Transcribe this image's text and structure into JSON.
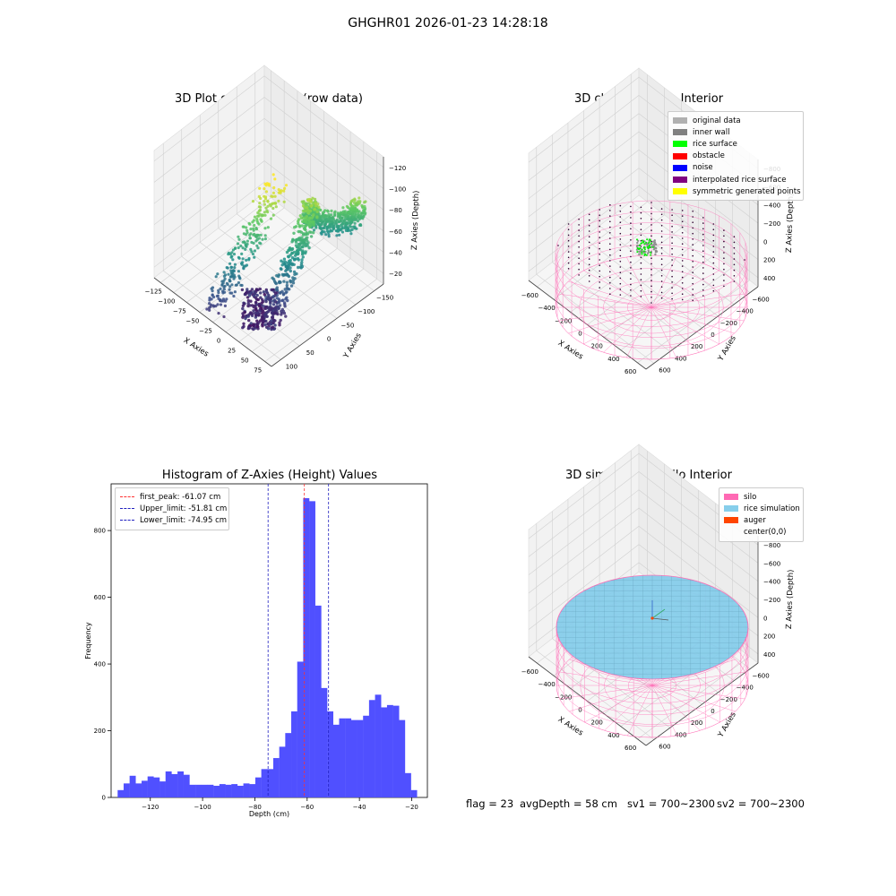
{
  "figure_title": "GHGHR01 2026-01-23 14:28:18",
  "status": {
    "flag": "flag = 23",
    "avg_depth": "avgDepth = 58 cm",
    "sv1": "sv1 = 700~2300",
    "sv2": "sv2 = 700~2300"
  },
  "colors": {
    "histogram_bar": "#5050ff",
    "first_peak": "#ff3030",
    "limits": "#2020c0",
    "silo": "#ff69b4",
    "rice_simulation": "#87ceeb",
    "auger": "#ff4500"
  },
  "chart_data": [
    {
      "type": "scatter",
      "title": "3D Plot of Silo Interior(row data)",
      "xlabel": "X Axies",
      "ylabel": "Y Axies",
      "zlabel": "Z Axies (Depth)",
      "xticks": [
        "−125",
        "−100",
        "−75",
        "−50",
        "−25",
        "0",
        "25",
        "50",
        "75"
      ],
      "yticks": [
        "100",
        "50",
        "0",
        "−50",
        "−100",
        "−150"
      ],
      "zticks": [
        "−20",
        "−40",
        "−60",
        "−80",
        "−100",
        "−120"
      ],
      "xlim": [
        -140,
        80
      ],
      "ylim": [
        -160,
        120
      ],
      "zlim": [
        -130,
        -15
      ],
      "colormap": "viridis"
    },
    {
      "type": "scatter",
      "title": "3D classify of Silo Interior",
      "xlabel": "X Axies",
      "ylabel": "Y Axies",
      "zlabel": "Z Axies (Depth)",
      "xticks": [
        "−600",
        "−400",
        "−200",
        "0",
        "200",
        "400",
        "600"
      ],
      "yticks": [
        "600",
        "400",
        "200",
        "0",
        "−200",
        "−400",
        "−600"
      ],
      "zticks": [
        "400",
        "200",
        "0",
        "−200",
        "−400",
        "−600",
        "−800"
      ],
      "legend": [
        {
          "label": "original data",
          "color": "#b0b0b0"
        },
        {
          "label": "inner wall",
          "color": "#808080"
        },
        {
          "label": "rice surface",
          "color": "#00ff00"
        },
        {
          "label": "obstacle",
          "color": "#ff0000"
        },
        {
          "label": "noise",
          "color": "#0000ff"
        },
        {
          "label": "interpolated rice surface",
          "color": "#800080"
        },
        {
          "label": "symmetric generated points",
          "color": "#ffff00"
        }
      ]
    },
    {
      "type": "bar",
      "title": "Histogram of Z-Axies (Height) Values",
      "xlabel": "Depth (cm)",
      "ylabel": "Frequency",
      "xlim": [
        -135,
        -14
      ],
      "ylim": [
        0,
        940
      ],
      "xticks": [
        -120,
        -100,
        -80,
        -60,
        -40,
        -20
      ],
      "yticks": [
        0,
        200,
        400,
        600,
        800
      ],
      "bin_start": -132.5,
      "bin_width": 2.29,
      "values": [
        22,
        42,
        65,
        42,
        50,
        63,
        60,
        48,
        78,
        70,
        78,
        68,
        38,
        38,
        38,
        38,
        35,
        40,
        38,
        40,
        35,
        42,
        40,
        60,
        85,
        85,
        118,
        152,
        193,
        258,
        407,
        897,
        888,
        575,
        328,
        258,
        218,
        237,
        237,
        232,
        232,
        245,
        292,
        308,
        270,
        277,
        275,
        232,
        73,
        22
      ],
      "vlines": [
        {
          "label": "first_peak: -61.07 cm",
          "x": -61.07,
          "color": "#ff3030"
        },
        {
          "label": "Upper_limit: -51.81 cm",
          "x": -51.81,
          "color": "#2020c0"
        },
        {
          "label": "Lower_limit: -74.95 cm",
          "x": -74.95,
          "color": "#2020c0"
        }
      ],
      "legend_position": "upper-left"
    },
    {
      "type": "scatter",
      "title": "3D simulation of Silo Interior",
      "xlabel": "X Axies",
      "ylabel": "Y Axies",
      "zlabel": "Z Axies (Depth)",
      "xticks": [
        "−600",
        "−400",
        "−200",
        "0",
        "200",
        "400",
        "600"
      ],
      "yticks": [
        "600",
        "400",
        "200",
        "0",
        "−200",
        "−400",
        "−600"
      ],
      "zticks": [
        "400",
        "200",
        "0",
        "−200",
        "−400",
        "−600",
        "−800"
      ],
      "legend": [
        {
          "label": "silo",
          "color": "#ff69b4"
        },
        {
          "label": "rice simulation",
          "color": "#87ceeb"
        },
        {
          "label": "auger",
          "color": "#ff4500"
        },
        {
          "label": "center(0,0)",
          "color": ""
        }
      ]
    }
  ]
}
